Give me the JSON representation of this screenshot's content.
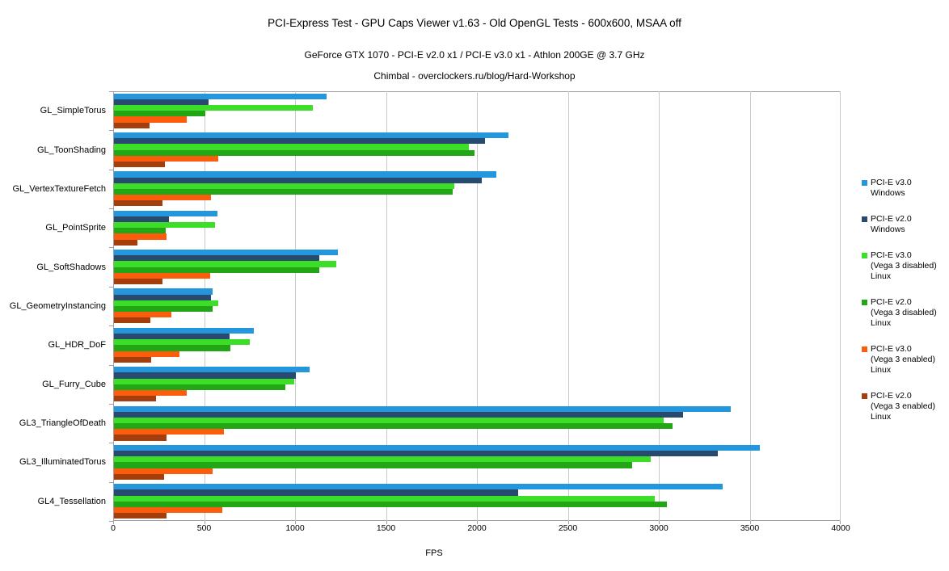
{
  "header": {
    "title": "PCI-Express Test - GPU Caps Viewer v1.63 - Old OpenGL Tests - 600x600, MSAA off",
    "subtitle": "GeForce GTX 1070 - PCI-E v2.0 x1 / PCI-E v3.0 x1 - Athlon 200GE @ 3.7 GHz",
    "credit": "Chimbal - overclockers.ru/blog/Hard-Workshop"
  },
  "chart_data": {
    "type": "bar",
    "orientation": "horizontal",
    "title": "PCI-Express Test - GPU Caps Viewer v1.63 - Old OpenGL Tests - 600x600, MSAA off",
    "xlabel": "FPS",
    "xlim": [
      0,
      4000
    ],
    "xticks": [
      0,
      500,
      1000,
      1500,
      2000,
      2500,
      3000,
      3500,
      4000
    ],
    "grid": true,
    "legend_position": "right",
    "categories": [
      "GL_SimpleTorus",
      "GL_ToonShading",
      "GL_VertexTextureFetch",
      "GL_PointSprite",
      "GL_SoftShadows",
      "GL_GeometryInstancing",
      "GL_HDR_DoF",
      "GL_Furry_Cube",
      "GL3_TriangleOfDeath",
      "GL3_IlluminatedTorus",
      "GL4_Tessellation"
    ],
    "series": [
      {
        "name": "PCI-E v3.0 Windows",
        "legend": [
          "PCI-E v3.0",
          "Windows"
        ],
        "color": "#2496DC",
        "values": [
          1170,
          2170,
          2100,
          570,
          1230,
          540,
          770,
          1075,
          3390,
          3550,
          3345
        ]
      },
      {
        "name": "PCI-E v2.0 Windows",
        "legend": [
          "PCI-E v2.0",
          "Windows"
        ],
        "color": "#294A6F",
        "values": [
          520,
          2040,
          2020,
          300,
          1130,
          535,
          635,
          1000,
          3130,
          3320,
          2220
        ]
      },
      {
        "name": "PCI-E v3.0 (Vega 3 disabled) Linux",
        "legend": [
          "PCI-E v3.0",
          "(Vega 3 disabled)",
          "Linux"
        ],
        "color": "#3CDE28",
        "values": [
          1095,
          1950,
          1870,
          555,
          1220,
          575,
          745,
          990,
          3020,
          2950,
          2975
        ]
      },
      {
        "name": "PCI-E v2.0 (Vega 3 disabled) Linux",
        "legend": [
          "PCI-E v2.0",
          "(Vega 3 disabled)",
          "Linux"
        ],
        "color": "#23A616",
        "values": [
          500,
          1980,
          1860,
          285,
          1130,
          540,
          640,
          940,
          3070,
          2850,
          3040
        ]
      },
      {
        "name": "PCI-E v3.0 (Vega 3 enabled) Linux",
        "legend": [
          "PCI-E v3.0",
          "(Vega 3 enabled)",
          "Linux"
        ],
        "color": "#FC5D0D",
        "values": [
          400,
          575,
          535,
          290,
          530,
          315,
          360,
          400,
          605,
          540,
          595
        ]
      },
      {
        "name": "PCI-E v2.0 (Vega 3 enabled) Linux",
        "legend": [
          "PCI-E v2.0",
          "(Vega 3 enabled)",
          "Linux"
        ],
        "color": "#A43E0C",
        "values": [
          195,
          280,
          265,
          130,
          265,
          200,
          205,
          230,
          290,
          275,
          290
        ]
      }
    ]
  }
}
